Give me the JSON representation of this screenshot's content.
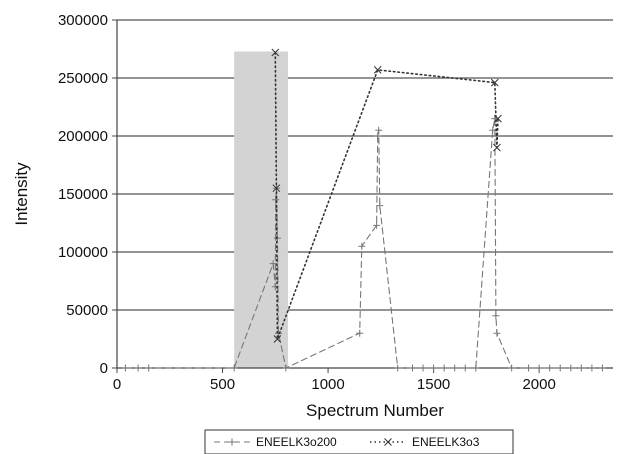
{
  "chart_data": {
    "type": "line",
    "xlabel": "Spectrum Number",
    "ylabel": "Intensity",
    "xlim": [
      0,
      2350
    ],
    "ylim": [
      0,
      300000
    ],
    "xticks": [
      0,
      500,
      1000,
      1500,
      2000
    ],
    "yticks": [
      0,
      50000,
      100000,
      150000,
      200000,
      250000,
      300000
    ],
    "grid": "horizontal",
    "legend_position": "bottom",
    "shaded_region": {
      "x": [
        555,
        810
      ],
      "color": "#d3d3d3"
    },
    "series": [
      {
        "name": "ENEELK3o200",
        "style": "dashed",
        "marker": "plus",
        "color": "#777777",
        "points": [
          [
            40,
            0
          ],
          [
            100,
            0
          ],
          [
            150,
            0
          ],
          [
            555,
            0
          ],
          [
            740,
            90000
          ],
          [
            750,
            70000
          ],
          [
            752,
            145000
          ],
          [
            756,
            155000
          ],
          [
            760,
            112000
          ],
          [
            765,
            30000
          ],
          [
            800,
            0
          ],
          [
            1150,
            30000
          ],
          [
            1160,
            105000
          ],
          [
            1230,
            123000
          ],
          [
            1235,
            200000
          ],
          [
            1240,
            205000
          ],
          [
            1245,
            140000
          ],
          [
            1330,
            0
          ],
          [
            1400,
            0
          ],
          [
            1450,
            0
          ],
          [
            1500,
            0
          ],
          [
            1550,
            0
          ],
          [
            1600,
            0
          ],
          [
            1650,
            0
          ],
          [
            1700,
            0
          ],
          [
            1780,
            205000
          ],
          [
            1790,
            215000
          ],
          [
            1795,
            45000
          ],
          [
            1800,
            30000
          ],
          [
            1870,
            0
          ],
          [
            1950,
            0
          ],
          [
            2000,
            0
          ],
          [
            2050,
            0
          ],
          [
            2100,
            0
          ],
          [
            2150,
            0
          ],
          [
            2200,
            0
          ],
          [
            2250,
            0
          ],
          [
            2300,
            0
          ]
        ]
      },
      {
        "name": "ENEELK3o3",
        "style": "dotted",
        "marker": "x",
        "color": "#333333",
        "points": [
          [
            750,
            272000
          ],
          [
            755,
            155000
          ],
          [
            760,
            25000
          ],
          [
            1235,
            257000
          ],
          [
            1790,
            246000
          ],
          [
            1800,
            190000
          ],
          [
            1805,
            215000
          ]
        ]
      }
    ]
  }
}
